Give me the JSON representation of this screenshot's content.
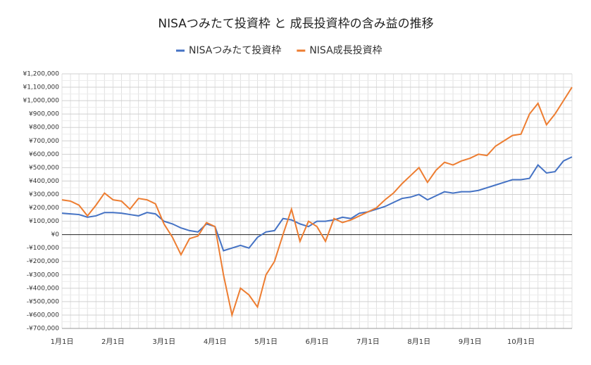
{
  "chart_data": {
    "type": "line",
    "title": "NISAつみたて投資枠 と 成長投資枠の含み益の推移",
    "categories": [
      "1月1日",
      null,
      null,
      null,
      null,
      null,
      "2月1日",
      null,
      null,
      null,
      null,
      null,
      "3月1日",
      null,
      null,
      null,
      null,
      null,
      "4月1日",
      null,
      null,
      null,
      null,
      null,
      "5月1日",
      null,
      null,
      null,
      null,
      null,
      "6月1日",
      null,
      null,
      null,
      null,
      null,
      "7月1日",
      null,
      null,
      null,
      null,
      null,
      "8月1日",
      null,
      null,
      null,
      null,
      null,
      "9月1日",
      null,
      null,
      null,
      null,
      null,
      "10月1日",
      null,
      null,
      null,
      null,
      null,
      null
    ],
    "series": [
      {
        "name": "NISAつみたて投資枠",
        "color": "#4472c4",
        "values": [
          160000,
          155000,
          150000,
          130000,
          140000,
          165000,
          165000,
          160000,
          150000,
          140000,
          165000,
          155000,
          100000,
          80000,
          50000,
          30000,
          20000,
          80000,
          60000,
          -120000,
          -100000,
          -80000,
          -100000,
          -20000,
          20000,
          30000,
          120000,
          110000,
          80000,
          60000,
          100000,
          100000,
          110000,
          130000,
          120000,
          160000,
          170000,
          190000,
          210000,
          240000,
          270000,
          280000,
          300000,
          260000,
          290000,
          320000,
          310000,
          320000,
          320000,
          330000,
          350000,
          370000,
          390000,
          410000,
          410000,
          420000,
          520000,
          460000,
          470000,
          550000,
          580000
        ]
      },
      {
        "name": "NISA成長投資枠",
        "color": "#ed7d31",
        "values": [
          260000,
          250000,
          220000,
          140000,
          220000,
          310000,
          260000,
          250000,
          190000,
          270000,
          260000,
          230000,
          80000,
          -20000,
          -150000,
          -30000,
          -10000,
          90000,
          60000,
          -300000,
          -600000,
          -400000,
          -450000,
          -540000,
          -300000,
          -200000,
          0,
          190000,
          -50000,
          100000,
          60000,
          -50000,
          120000,
          90000,
          110000,
          140000,
          170000,
          200000,
          260000,
          310000,
          380000,
          440000,
          500000,
          390000,
          480000,
          540000,
          520000,
          550000,
          570000,
          600000,
          590000,
          660000,
          700000,
          740000,
          750000,
          900000,
          980000,
          820000,
          900000,
          1000000,
          1100000
        ]
      }
    ],
    "ylim": [
      -700000,
      1200000
    ],
    "yticks": [
      {
        "value": -700000,
        "label": "-¥700,000"
      },
      {
        "value": -600000,
        "label": "-¥600,000"
      },
      {
        "value": -500000,
        "label": "-¥500,000"
      },
      {
        "value": -400000,
        "label": "-¥400,000"
      },
      {
        "value": -300000,
        "label": "-¥300,000"
      },
      {
        "value": -200000,
        "label": "-¥200,000"
      },
      {
        "value": -100000,
        "label": "-¥100,000"
      },
      {
        "value": 0,
        "label": "¥0"
      },
      {
        "value": 100000,
        "label": "¥100,000"
      },
      {
        "value": 200000,
        "label": "¥200,000"
      },
      {
        "value": 300000,
        "label": "¥300,000"
      },
      {
        "value": 400000,
        "label": "¥400,000"
      },
      {
        "value": 500000,
        "label": "¥500,000"
      },
      {
        "value": 600000,
        "label": "¥600,000"
      },
      {
        "value": 700000,
        "label": "¥700,000"
      },
      {
        "value": 800000,
        "label": "¥800,000"
      },
      {
        "value": 900000,
        "label": "¥900,000"
      },
      {
        "value": 1000000,
        "label": "¥1,000,000"
      },
      {
        "value": 1100000,
        "label": "¥1,100,000"
      },
      {
        "value": 1200000,
        "label": "¥1,200,000"
      }
    ],
    "grid": true,
    "legend": "top"
  }
}
